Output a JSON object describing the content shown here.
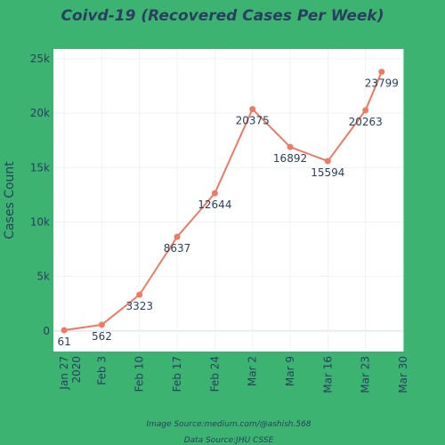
{
  "chart_data": {
    "type": "line",
    "title": "Coivd-19 (Recovered Cases Per Week)",
    "xlabel": "",
    "ylabel": "Cases Count",
    "x_tick_labels": [
      [
        "Jan 27",
        "2020"
      ],
      [
        "Feb 3"
      ],
      [
        "Feb 10"
      ],
      [
        "Feb 17"
      ],
      [
        "Feb 24"
      ],
      [
        "Mar 2"
      ],
      [
        "Mar 9"
      ],
      [
        "Mar 16"
      ],
      [
        "Mar 23"
      ],
      [
        "Mar 30"
      ]
    ],
    "y_tick_labels": [
      "0",
      "5k",
      "10k",
      "15k",
      "20k",
      "25k"
    ],
    "y_ticks": [
      0,
      5000,
      10000,
      15000,
      20000,
      25000
    ],
    "xlim": [
      "2020-01-25",
      "2020-03-30"
    ],
    "ylim": [
      -1900,
      25900
    ],
    "grid": true,
    "line_color": "#ef7a62",
    "series": [
      {
        "x": [
          "2020-01-27",
          "2020-02-03",
          "2020-02-10",
          "2020-02-17",
          "2020-02-24",
          "2020-03-02",
          "2020-03-09",
          "2020-03-16",
          "2020-03-23",
          "2020-03-26"
        ],
        "values": [
          61,
          562,
          3323,
          8637,
          12644,
          20375,
          16892,
          15594,
          20263,
          23799
        ]
      }
    ]
  },
  "footer": {
    "image_source": "Image Source:medium.com/@ashish.568",
    "data_source": "Data Source:JHU CSSE"
  }
}
